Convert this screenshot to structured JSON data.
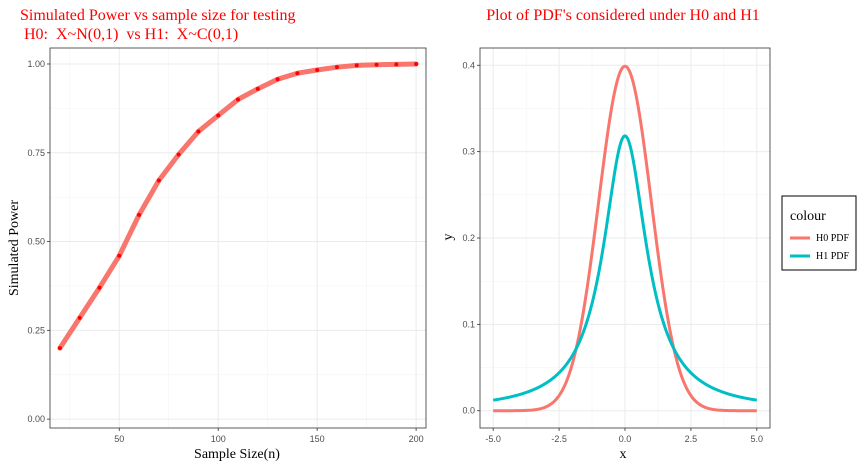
{
  "chart_data": [
    {
      "type": "line",
      "title": "Simulated Power vs sample size for testing",
      "subtitle": " H0:  X~N(0,1)  vs H1:  X~C(0,1)",
      "xlabel": "Sample Size(n)",
      "ylabel": "Simulated Power",
      "xlim": [
        15,
        205
      ],
      "ylim": [
        -0.025,
        1.045
      ],
      "xticks": [
        50,
        100,
        150,
        200
      ],
      "yticks": [
        0.0,
        0.25,
        0.5,
        0.75,
        1.0
      ],
      "xtick_labels": [
        "50",
        "100",
        "150",
        "200"
      ],
      "ytick_labels": [
        "0.00",
        "0.25",
        "0.50",
        "0.75",
        "1.00"
      ],
      "grid": true,
      "line_color": "#f8766d",
      "point_color": "#ff0000",
      "series": [
        {
          "x": [
            20,
            30,
            40,
            50,
            60,
            70,
            80,
            90,
            100,
            110,
            120,
            130,
            140,
            150,
            160,
            170,
            180,
            190,
            200
          ],
          "values": [
            0.2,
            0.285,
            0.37,
            0.46,
            0.575,
            0.672,
            0.745,
            0.81,
            0.855,
            0.9,
            0.93,
            0.957,
            0.974,
            0.983,
            0.991,
            0.996,
            0.998,
            0.999,
            1.0
          ]
        }
      ]
    },
    {
      "type": "line",
      "title": "Plot of PDF's considered under H0 and H1",
      "xlabel": "x",
      "ylabel": "y",
      "xlim": [
        -5.5,
        5.5
      ],
      "ylim": [
        -0.02,
        0.42
      ],
      "xticks": [
        -5.0,
        -2.5,
        0.0,
        2.5,
        5.0
      ],
      "yticks": [
        0.0,
        0.1,
        0.2,
        0.3,
        0.4
      ],
      "xtick_labels": [
        "-5.0",
        "-2.5",
        "0.0",
        "2.5",
        "5.0"
      ],
      "ytick_labels": [
        "0.0",
        "0.1",
        "0.2",
        "0.3",
        "0.4"
      ],
      "grid": true,
      "legend": {
        "title": "colour",
        "placement": "right",
        "entries": [
          {
            "label": "H0 PDF",
            "color": "#f8766d"
          },
          {
            "label": "H1 PDF",
            "color": "#00bfc4"
          }
        ]
      },
      "series": [
        {
          "name": "H0 PDF",
          "color": "#f8766d",
          "distribution": "normal(0,1)",
          "x_range": [
            -5,
            5
          ],
          "peak": 0.399
        },
        {
          "name": "H1 PDF",
          "color": "#00bfc4",
          "distribution": "cauchy(0,1)",
          "x_range": [
            -5,
            5
          ],
          "peak": 0.318
        }
      ]
    }
  ]
}
